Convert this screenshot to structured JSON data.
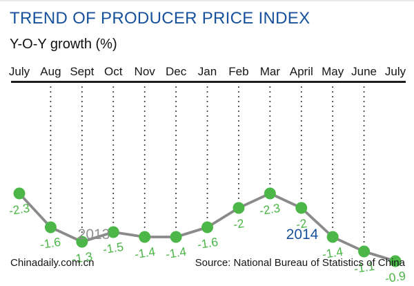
{
  "header": {
    "title": "TREND OF PRODUCER PRICE INDEX",
    "subtitle": "Y-O-Y growth (%)"
  },
  "chart_data": {
    "type": "line",
    "title": "TREND OF PRODUCER PRICE INDEX",
    "ylabel": "Y-O-Y growth (%)",
    "categories": [
      "July",
      "Aug",
      "Sept",
      "Oct",
      "Nov",
      "Dec",
      "Jan",
      "Feb",
      "Mar",
      "April",
      "May",
      "June",
      "July"
    ],
    "values": [
      -2.3,
      -1.6,
      -1.3,
      -1.5,
      -1.4,
      -1.4,
      -1.6,
      -2,
      -2.3,
      -2,
      -1.4,
      -1.1,
      -0.9
    ],
    "value_labels": [
      "-2.3",
      "-1.6",
      "-1.3",
      "-1.5",
      "-1.4",
      "-1.4",
      "-1.6",
      "-2",
      "-2.3",
      "-2",
      "-1.4",
      "-1.1",
      "-0.9"
    ],
    "ylim": [
      -2.6,
      -0.6
    ],
    "grid": "vertical-dotted-between-endpoints",
    "legend_position": "none",
    "year_groups": [
      {
        "label": "2013",
        "color": "#8f8f8f"
      },
      {
        "label": "2014",
        "color": "#17519b"
      }
    ]
  },
  "footer": {
    "brand": "Chinadaily.com.cn",
    "source": "Source: National Bureau of Statistics of China"
  },
  "colors": {
    "accent_blue": "#17519b",
    "point_green": "#4cb648",
    "line_gray": "#8a8a8a",
    "grid_dot": "#3d3d3d",
    "axis_black": "#1c1c1c"
  }
}
